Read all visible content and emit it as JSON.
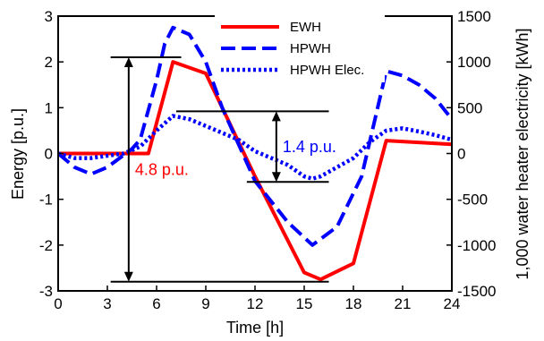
{
  "chart_data": {
    "type": "line",
    "title": "",
    "xlabel": "Time [h]",
    "ylabel": "Energy [p.u.]",
    "y2label": "1,000 water heater electricity [kWh]",
    "xlim": [
      0,
      24
    ],
    "ylim": [
      -3,
      3
    ],
    "y2lim": [
      -1500,
      1500
    ],
    "xticks": [
      0,
      3,
      6,
      9,
      12,
      15,
      18,
      21,
      24
    ],
    "yticks": [
      -3,
      -2,
      -1,
      0,
      1,
      2,
      3
    ],
    "y2ticks": [
      -1500,
      -1000,
      -500,
      0,
      500,
      1000,
      1500
    ],
    "grid": false,
    "legend": "top-center",
    "series": [
      {
        "name": "EWH",
        "axis": "left",
        "style": "solid",
        "color": "#ff0000",
        "x": [
          0,
          5.5,
          7,
          9,
          12,
          15,
          16,
          18,
          20,
          24
        ],
        "y": [
          0,
          0,
          2.0,
          1.75,
          -0.5,
          -2.6,
          -2.75,
          -2.4,
          0.28,
          0.2
        ]
      },
      {
        "name": "HPWH",
        "axis": "left",
        "style": "dashed",
        "color": "#0000ff",
        "x": [
          0,
          1,
          2,
          3,
          4.5,
          5,
          6,
          6.5,
          7,
          8,
          9,
          10,
          12,
          14,
          15.5,
          17,
          18.5,
          20,
          21,
          22,
          23,
          24
        ],
        "y": [
          0,
          -0.3,
          -0.45,
          -0.3,
          0.1,
          0.3,
          1.6,
          2.4,
          2.75,
          2.6,
          2.0,
          1.0,
          -0.6,
          -1.5,
          -2.0,
          -1.6,
          -0.5,
          1.8,
          1.7,
          1.5,
          1.2,
          0.75
        ]
      },
      {
        "name": "HPWH Elec.",
        "axis": "left",
        "style": "dotted",
        "color": "#0000ff",
        "x": [
          0,
          1,
          2,
          3,
          4,
          5,
          6,
          7,
          8,
          9,
          10,
          11,
          12,
          13,
          14,
          15,
          15.5,
          16,
          17,
          18,
          19,
          20,
          21,
          22,
          23,
          24
        ],
        "y": [
          0,
          -0.1,
          -0.1,
          -0.05,
          0,
          0.15,
          0.5,
          0.82,
          0.75,
          0.6,
          0.45,
          0.3,
          0.05,
          -0.1,
          -0.25,
          -0.5,
          -0.55,
          -0.5,
          -0.3,
          -0.1,
          0.25,
          0.5,
          0.55,
          0.48,
          0.4,
          0.3
        ]
      }
    ],
    "annotations": [
      {
        "label": "4.8 p.u.",
        "color": "#ff0000",
        "arrow_x": 4.3,
        "y_top": 2.1,
        "y_bottom": -2.8,
        "top_line_x": [
          3.2,
          7.5
        ],
        "bottom_line_x": [
          3.2,
          16.5
        ]
      },
      {
        "label": "1.4 p.u.",
        "color": "#0000ff",
        "arrow_x": 13.3,
        "y_top": 0.92,
        "y_bottom": -0.62,
        "top_line_x": [
          7.2,
          16.5
        ],
        "bottom_line_x": [
          11.5,
          16.5
        ]
      }
    ]
  }
}
